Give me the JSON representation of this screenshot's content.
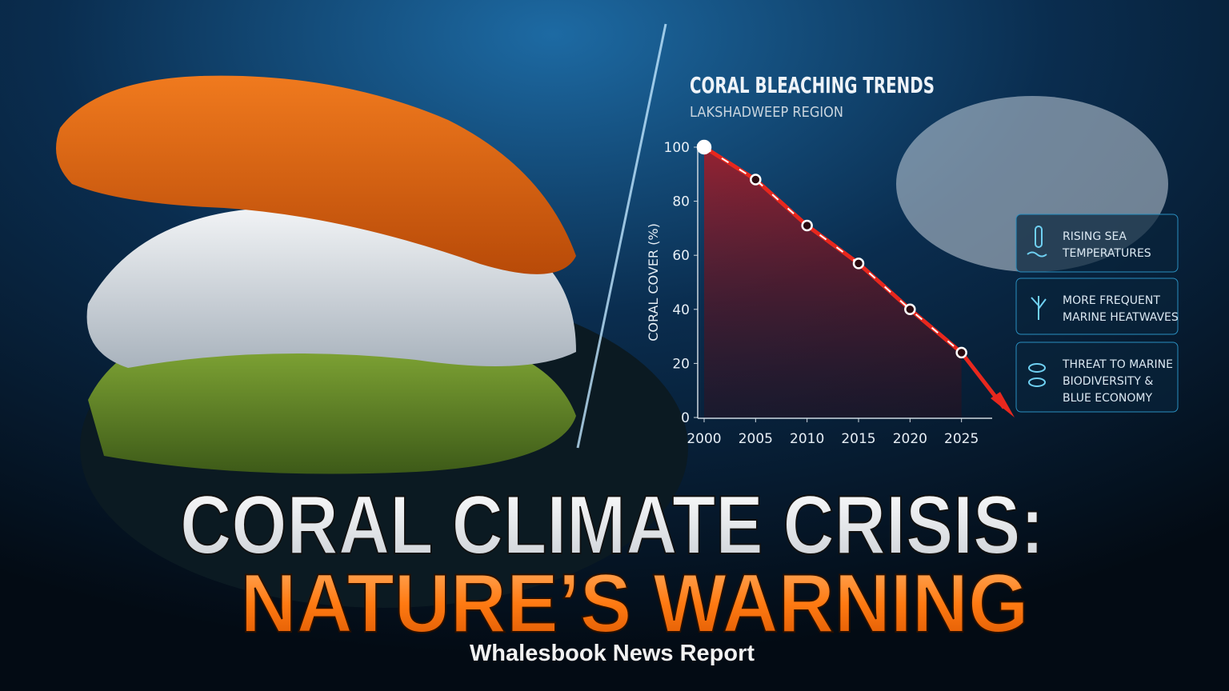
{
  "chart_data": {
    "type": "line",
    "title": "CORAL BLEACHING TRENDS",
    "subtitle": "LAKSHADWEEP REGION",
    "y_label": "CORAL COVER (%)",
    "x": [
      2000,
      2005,
      2010,
      2015,
      2020,
      2025
    ],
    "values": [
      100,
      88,
      71,
      57,
      40,
      24
    ],
    "color": "#e8281e",
    "xlim": [
      2000,
      2030
    ],
    "xticks": [
      2000,
      2005,
      2010,
      2015,
      2020,
      2025
    ],
    "ylim": [
      0,
      100
    ],
    "yticks": [
      0,
      20,
      40,
      60,
      80,
      100
    ]
  },
  "callouts": [
    {
      "lines": [
        "RISING SEA",
        "TEMPERATURES"
      ]
    },
    {
      "lines": [
        "MORE FREQUENT",
        "MARINE HEATWAVES"
      ]
    },
    {
      "lines": [
        "THREAT TO MARINE",
        "BIODIVERSITY &",
        "BLUE ECONOMY"
      ]
    }
  ],
  "headline": {
    "line1": "CORAL CLIMATE CRISIS:",
    "line2": "NATURE’S WARNING",
    "byline": "Whalesbook News Report"
  }
}
